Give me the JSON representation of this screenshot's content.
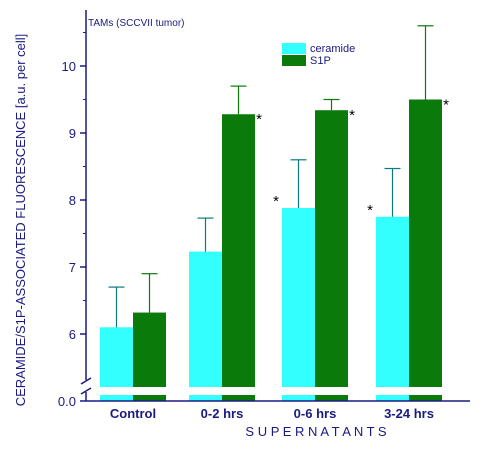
{
  "colors": {
    "ceramide": "#33ffff",
    "s1p": "#0a7a0a",
    "axis": "#1a1a80",
    "error_bar_ceramide": "#0a7a7a",
    "error_bar_s1p": "#0a7a0a"
  },
  "chart_data": {
    "type": "bar",
    "subtitle": "TAMs (SCCVII tumor)",
    "ylabel": "CERAMIDE/S1P-ASSOCIATED FLUORESCENCE [a.u. per cell]",
    "xlabel": "S U P E R N A T A N T S",
    "categories": [
      "Control",
      "0-2 hrs",
      "0-6 hrs",
      "3-24 hrs"
    ],
    "y_ticks": [
      "0.0",
      "6",
      "7",
      "8",
      "9",
      "10"
    ],
    "ylim": [
      5.5,
      10.8
    ],
    "axis_break": true,
    "legend_position": "top-center",
    "grid": false,
    "series": [
      {
        "name": "ceramide",
        "values": [
          6.1,
          7.23,
          7.88,
          7.75
        ],
        "error": [
          0.6,
          0.5,
          0.72,
          0.72
        ],
        "significant": [
          false,
          false,
          true,
          true
        ]
      },
      {
        "name": "S1P",
        "values": [
          6.32,
          9.28,
          9.34,
          9.5
        ],
        "error": [
          0.58,
          0.42,
          0.16,
          1.1
        ],
        "significant": [
          false,
          true,
          true,
          true
        ]
      }
    ],
    "significance_marker": "*"
  }
}
